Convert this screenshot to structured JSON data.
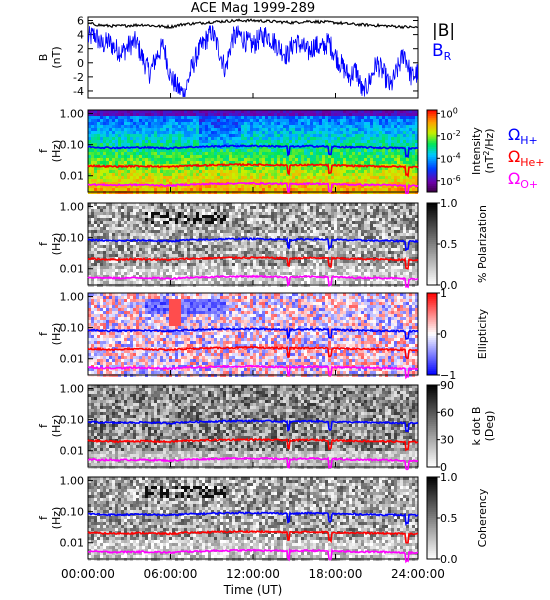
{
  "chart_data": [
    {
      "type": "line",
      "title": "ACE Mag 1999-289",
      "ylabel_line1": "B",
      "ylabel_line2": "(nT)",
      "ylim": [
        -5,
        6.5
      ],
      "yticks": [
        -4,
        -2,
        0,
        2,
        4,
        6
      ],
      "series": [
        {
          "name": "|B|",
          "color": "#000000",
          "x_hours": [
            0,
            1,
            2,
            3,
            4,
            5,
            6,
            7,
            8,
            9,
            10,
            11,
            12,
            13,
            14,
            15,
            16,
            17,
            18,
            19,
            20,
            21,
            22,
            23,
            24
          ],
          "values": [
            5.6,
            5.3,
            5.2,
            5.3,
            5.4,
            5.2,
            5.1,
            5.5,
            5.6,
            5.8,
            5.9,
            6.0,
            6.0,
            5.9,
            5.8,
            5.7,
            5.9,
            5.8,
            5.7,
            5.5,
            5.4,
            5.3,
            5.2,
            5.1,
            5.0
          ]
        },
        {
          "name": "B",
          "sub": "R",
          "color": "#0000ff",
          "x_hours": [
            0,
            0.5,
            1,
            1.5,
            2,
            2.5,
            3,
            3.5,
            4,
            4.5,
            5,
            5.5,
            6,
            6.5,
            7,
            7.5,
            8,
            8.5,
            9,
            9.5,
            10,
            10.5,
            11,
            11.5,
            12,
            12.5,
            13,
            13.5,
            14,
            14.5,
            15,
            15.5,
            16,
            16.5,
            17,
            17.5,
            18,
            18.5,
            19,
            19.5,
            20,
            20.5,
            21,
            21.5,
            22,
            22.5,
            23,
            23.5,
            24
          ],
          "values": [
            3.5,
            4.0,
            2.5,
            3.0,
            2.0,
            1.5,
            2.5,
            3.0,
            0.5,
            -1.5,
            1.0,
            2.5,
            -2.0,
            -3.5,
            -4.5,
            -1.0,
            1.5,
            3.0,
            4.5,
            2.0,
            -1.0,
            3.5,
            4.0,
            3.0,
            2.5,
            3.5,
            4.0,
            3.0,
            2.0,
            1.0,
            3.0,
            2.5,
            1.5,
            2.5,
            2.0,
            3.0,
            1.0,
            -0.5,
            -2.0,
            -1.0,
            -4.5,
            -2.5,
            0.0,
            -1.5,
            -3.5,
            -1.0,
            1.5,
            -2.0,
            -1.5
          ]
        }
      ]
    },
    {
      "type": "heatmap",
      "ylabel_line1": "f",
      "ylabel_line2": "(Hz)",
      "yscale": "log",
      "ylim": [
        0.003,
        1.3
      ],
      "ytick_labels": [
        "1.00",
        "0.10",
        "0.01"
      ],
      "colorbar": {
        "label_line1": "Intensity",
        "label_line2": "(nT",
        "label_sup": "2",
        "label_end": "/Hz)",
        "ticks": [
          {
            "base": "10",
            "exp": "0"
          },
          {
            "base": "10",
            "exp": "-2"
          },
          {
            "base": "10",
            "exp": "-4"
          },
          {
            "base": "10",
            "exp": "-6"
          }
        ],
        "tick_positions": [
          0,
          -2,
          -4,
          -6
        ],
        "range": [
          -7,
          0.3
        ],
        "colormap": "rainbow"
      },
      "side_legend": [
        {
          "symbol": "Ω",
          "sub": "H+",
          "color": "#0000ff"
        },
        {
          "symbol": "Ω",
          "sub": "He+",
          "color": "#ff0000"
        },
        {
          "symbol": "Ω",
          "sub": "O+",
          "color": "#ff00ff"
        }
      ]
    },
    {
      "type": "heatmap",
      "ylabel_line1": "f",
      "ylabel_line2": "(Hz)",
      "yscale": "log",
      "ylim": [
        0.003,
        1.3
      ],
      "ytick_labels": [
        "1.00",
        "0.10",
        "0.01"
      ],
      "colorbar": {
        "label": "% Polarization",
        "ticks": [
          "1.0",
          "0.5",
          "0.0"
        ],
        "tick_positions": [
          1.0,
          0.5,
          0.0
        ],
        "range": [
          0,
          1
        ],
        "colormap": "gray"
      }
    },
    {
      "type": "heatmap",
      "ylabel_line1": "f",
      "ylabel_line2": "(Hz)",
      "yscale": "log",
      "ylim": [
        0.003,
        1.3
      ],
      "ytick_labels": [
        "1.00",
        "0.10",
        "0.01"
      ],
      "colorbar": {
        "label": "Ellipticity",
        "ticks": [
          "1",
          "0",
          "−1"
        ],
        "tick_positions": [
          1,
          0,
          -1
        ],
        "range": [
          -1,
          1
        ],
        "colormap": "bwr"
      }
    },
    {
      "type": "heatmap",
      "ylabel_line1": "f",
      "ylabel_line2": "(Hz)",
      "yscale": "log",
      "ylim": [
        0.003,
        1.3
      ],
      "ytick_labels": [
        "1.00",
        "0.10",
        "0.01"
      ],
      "colorbar": {
        "label_line1": "k dot B",
        "label_line2": "(Deg)",
        "ticks": [
          "90",
          "60",
          "30",
          "0"
        ],
        "tick_positions": [
          90,
          60,
          30,
          0
        ],
        "range": [
          0,
          90
        ],
        "colormap": "gray"
      }
    },
    {
      "type": "heatmap",
      "ylabel_line1": "f",
      "ylabel_line2": "(Hz)",
      "yscale": "log",
      "ylim": [
        0.003,
        1.3
      ],
      "ytick_labels": [
        "1.00",
        "0.10",
        "0.01"
      ],
      "colorbar": {
        "label": "Coherency",
        "ticks": [
          "1.0",
          "0.5",
          "0.0"
        ],
        "tick_positions": [
          1.0,
          0.5,
          0.0
        ],
        "range": [
          0,
          1
        ],
        "colormap": "gray"
      },
      "xlabel": "Time (UT)",
      "xtick_labels": [
        "00:00:00",
        "06:00:00",
        "12:00:00",
        "18:00:00",
        "24:00:00"
      ],
      "xtick_hours": [
        0,
        6,
        12,
        18,
        24
      ]
    }
  ],
  "gyrofrequency_lines": {
    "x_hours": [
      0,
      1,
      2,
      3,
      4,
      5,
      6,
      7,
      8,
      9,
      10,
      11,
      12,
      13,
      14,
      15,
      16,
      17,
      18,
      19,
      20,
      21,
      22,
      23,
      24
    ],
    "H+": {
      "color": "#0000ff",
      "values_hz": [
        0.085,
        0.081,
        0.079,
        0.08,
        0.082,
        0.079,
        0.077,
        0.083,
        0.085,
        0.088,
        0.09,
        0.091,
        0.091,
        0.09,
        0.088,
        0.086,
        0.09,
        0.088,
        0.086,
        0.083,
        0.082,
        0.08,
        0.079,
        0.077,
        0.076
      ]
    },
    "He+": {
      "color": "#ff0000",
      "values_hz": [
        0.0213,
        0.0202,
        0.0198,
        0.0202,
        0.0205,
        0.0198,
        0.0194,
        0.0209,
        0.0213,
        0.022,
        0.0225,
        0.0228,
        0.0228,
        0.0224,
        0.022,
        0.0216,
        0.0224,
        0.022,
        0.0216,
        0.0209,
        0.0205,
        0.0202,
        0.0198,
        0.0194,
        0.019
      ]
    },
    "O+": {
      "color": "#ff00ff",
      "values_hz": [
        0.0053,
        0.0051,
        0.005,
        0.0051,
        0.0051,
        0.005,
        0.0048,
        0.0052,
        0.0053,
        0.0055,
        0.0056,
        0.0057,
        0.0057,
        0.0056,
        0.0055,
        0.0054,
        0.0056,
        0.0055,
        0.0054,
        0.0052,
        0.0051,
        0.0051,
        0.005,
        0.0048,
        0.0047
      ]
    }
  }
}
